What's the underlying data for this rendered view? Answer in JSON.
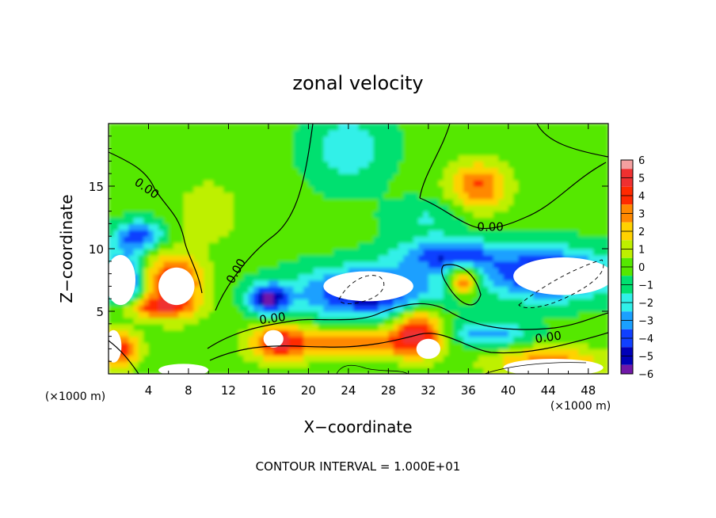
{
  "chart_data": {
    "type": "heatmap",
    "title": "zonal velocity",
    "xlabel": "X−coordinate",
    "ylabel": "Z−coordinate",
    "x_unit": "(×1000 m)",
    "y_unit": "(×1000 m)",
    "footer": "CONTOUR INTERVAL = 1.000E+01",
    "xlim": [
      0,
      50
    ],
    "ylim": [
      0,
      20
    ],
    "x_ticks": [
      4,
      8,
      12,
      16,
      20,
      24,
      28,
      32,
      36,
      40,
      44,
      48
    ],
    "y_ticks": [
      5,
      10,
      15
    ],
    "contour_label": "0.00",
    "colorbar": {
      "levels": [
        6,
        5,
        4,
        3,
        2,
        1,
        0,
        -1,
        -2,
        -3,
        -4,
        -5,
        -6
      ],
      "colors": [
        "#f4a0a0",
        "#ef3030",
        "#ff2a00",
        "#ff8800",
        "#ffd200",
        "#bef000",
        "#55e800",
        "#00e070",
        "#30f0e8",
        "#1aa0ff",
        "#1040ff",
        "#0000b8",
        "#7018a8"
      ]
    },
    "field": {
      "base": -0.2,
      "blobs": [
        {
          "x": 37,
          "z": 15,
          "rx": 3,
          "rz": 2,
          "v": 3.8
        },
        {
          "x": 10,
          "z": 13,
          "rx": 3,
          "rz": 2.5,
          "v": 1.6
        },
        {
          "x": 6.5,
          "z": 7.2,
          "rx": 3,
          "rz": 2.5,
          "v": 4.8
        },
        {
          "x": 1.5,
          "z": 7.5,
          "rx": 1.8,
          "rz": 2,
          "v": -5.5
        },
        {
          "x": 3,
          "z": 11,
          "rx": 2.5,
          "rz": 1.2,
          "v": -4
        },
        {
          "x": 1,
          "z": 2,
          "rx": 2,
          "rz": 1.5,
          "v": 4.8
        },
        {
          "x": 4,
          "z": 5.3,
          "rx": 4,
          "rz": 0.8,
          "v": 3
        },
        {
          "x": 16,
          "z": 6,
          "rx": 2,
          "rz": 1.2,
          "v": -5.2
        },
        {
          "x": 17,
          "z": 2.5,
          "rx": 3,
          "rz": 1.5,
          "v": 4.5
        },
        {
          "x": 26,
          "z": 6.5,
          "rx": 7,
          "rz": 2,
          "v": -5.2
        },
        {
          "x": 25,
          "z": 2.5,
          "rx": 6,
          "rz": 1.2,
          "v": 3.8
        },
        {
          "x": 31,
          "z": 3.5,
          "rx": 2.5,
          "rz": 2,
          "v": 4.8
        },
        {
          "x": 35.5,
          "z": 7.5,
          "rx": 1.5,
          "rz": 1.3,
          "v": 4.5
        },
        {
          "x": 34,
          "z": 9.5,
          "rx": 5,
          "rz": 1.3,
          "v": -4.2
        },
        {
          "x": 44,
          "z": 8,
          "rx": 6,
          "rz": 2,
          "v": -5.2
        },
        {
          "x": 44,
          "z": 1,
          "rx": 6,
          "rz": 1.2,
          "v": 3.2
        },
        {
          "x": 38,
          "z": 3.2,
          "rx": 4,
          "rz": 1,
          "v": -3
        },
        {
          "x": 24,
          "z": 18,
          "rx": 4,
          "rz": 3,
          "v": -2
        },
        {
          "x": 32,
          "z": 12.5,
          "rx": 4,
          "rz": 1.5,
          "v": -1.4
        }
      ]
    },
    "off_scale_regions": [
      {
        "x": 1.2,
        "z": 7.5,
        "rx": 1.5,
        "rz": 2
      },
      {
        "x": 6.8,
        "z": 7,
        "rx": 1.8,
        "rz": 1.5
      },
      {
        "x": 0.5,
        "z": 2.2,
        "rx": 0.8,
        "rz": 1.3
      },
      {
        "x": 26,
        "z": 7,
        "rx": 4.5,
        "rz": 1.2
      },
      {
        "x": 45.5,
        "z": 7.8,
        "rx": 5,
        "rz": 1.5
      },
      {
        "x": 16.5,
        "z": 2.8,
        "rx": 1,
        "rz": 0.7
      },
      {
        "x": 32,
        "z": 2,
        "rx": 1.2,
        "rz": 0.8
      },
      {
        "x": 7.5,
        "z": 0.3,
        "rx": 2.5,
        "rz": 0.5
      },
      {
        "x": 44.5,
        "z": 0.5,
        "rx": 5,
        "rz": 0.7
      }
    ]
  }
}
